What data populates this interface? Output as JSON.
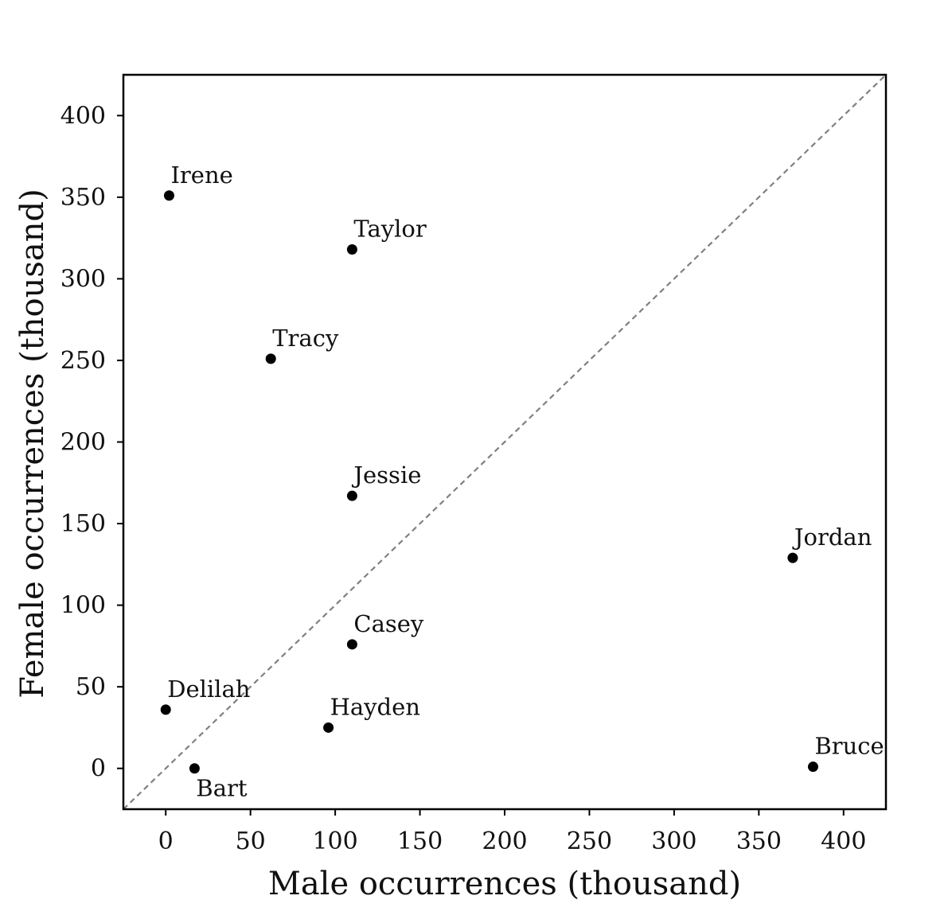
{
  "chart_data": {
    "type": "scatter",
    "title": "",
    "xlabel": "Male occurrences (thousand)",
    "ylabel": "Female occurrences (thousand)",
    "xlim": [
      -25,
      425
    ],
    "ylim": [
      -25,
      425
    ],
    "xticks": [
      0,
      50,
      100,
      150,
      200,
      250,
      300,
      350,
      400
    ],
    "yticks": [
      0,
      50,
      100,
      150,
      200,
      250,
      300,
      350,
      400
    ],
    "grid": false,
    "reference_line": {
      "type": "y=x",
      "style": "dashed",
      "color": "#808080"
    },
    "marker_color": "#000000",
    "points": [
      {
        "label": "Irene",
        "x": 2,
        "y": 351,
        "label_position": "above"
      },
      {
        "label": "Taylor",
        "x": 110,
        "y": 318,
        "label_position": "above"
      },
      {
        "label": "Tracy",
        "x": 62,
        "y": 251,
        "label_position": "above"
      },
      {
        "label": "Jessie",
        "x": 110,
        "y": 167,
        "label_position": "above"
      },
      {
        "label": "Jordan",
        "x": 370,
        "y": 129,
        "label_position": "above"
      },
      {
        "label": "Casey",
        "x": 110,
        "y": 76,
        "label_position": "above"
      },
      {
        "label": "Delilah",
        "x": 0,
        "y": 36,
        "label_position": "above"
      },
      {
        "label": "Hayden",
        "x": 96,
        "y": 25,
        "label_position": "above"
      },
      {
        "label": "Bart",
        "x": 17,
        "y": 0,
        "label_position": "below"
      },
      {
        "label": "Bruce",
        "x": 382,
        "y": 1,
        "label_position": "above"
      }
    ]
  }
}
